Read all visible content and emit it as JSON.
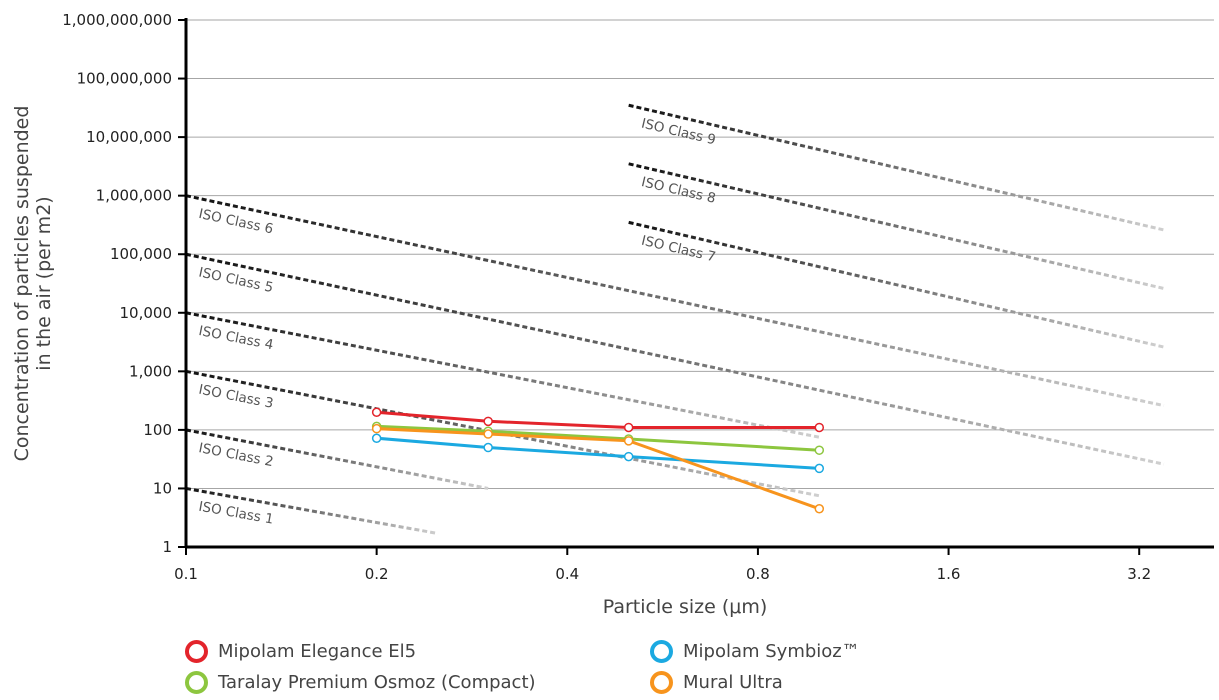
{
  "chart_data": {
    "type": "line",
    "title": "",
    "xlabel": "Particle size (μm)",
    "ylabel_lines": [
      "Concentration of particles suspended",
      "in the air (per m2)"
    ],
    "x_scale": "log2",
    "y_scale": "log10",
    "xlim": [
      0.1,
      4.2
    ],
    "ylim": [
      1,
      1000000000
    ],
    "x_ticks": [
      0.1,
      0.2,
      0.4,
      0.8,
      1.6,
      3.2
    ],
    "x_tick_labels": [
      "0.1",
      "0.2",
      "0.4",
      "0.8",
      "1.6",
      "3.2"
    ],
    "y_ticks": [
      1,
      10,
      100,
      1000,
      10000,
      100000,
      1000000,
      10000000,
      100000000,
      1000000000
    ],
    "y_tick_labels": [
      "1",
      "10",
      "100",
      "1,000",
      "10,000",
      "100,000",
      "1,000,000",
      "10,000,000",
      "100,000,000",
      "1,000,000,000"
    ],
    "grid": "horizontal",
    "series": [
      {
        "name": "Mipolam Elegance El5",
        "color": "#e3242b",
        "x": [
          0.2,
          0.3,
          0.5,
          1.0
        ],
        "y": [
          200,
          140,
          110,
          110
        ]
      },
      {
        "name": "Taralay Premium Osmoz (Compact)",
        "color": "#8dc63f",
        "x": [
          0.2,
          0.3,
          0.5,
          1.0
        ],
        "y": [
          115,
          95,
          70,
          45
        ]
      },
      {
        "name": "Mipolam Symbioz™",
        "color": "#1ba9e1",
        "x": [
          0.2,
          0.3,
          0.5,
          1.0
        ],
        "y": [
          72,
          50,
          35,
          22
        ]
      },
      {
        "name": "Mural Ultra",
        "color": "#f7941d",
        "x": [
          0.2,
          0.3,
          0.5,
          1.0
        ],
        "y": [
          105,
          85,
          65,
          4.5
        ]
      }
    ],
    "iso_classes": [
      {
        "label": "ISO Class 1",
        "x": [
          0.1,
          0.25
        ],
        "y": [
          10,
          1.7
        ]
      },
      {
        "label": "ISO Class 2",
        "x": [
          0.1,
          0.3
        ],
        "y": [
          100,
          10
        ]
      },
      {
        "label": "ISO Class 3",
        "x": [
          0.1,
          1.0
        ],
        "y": [
          1000,
          7.5
        ]
      },
      {
        "label": "ISO Class 4",
        "x": [
          0.1,
          1.0
        ],
        "y": [
          10000,
          75
        ]
      },
      {
        "label": "ISO Class 5",
        "x": [
          0.1,
          3.5
        ],
        "y": [
          100000,
          26
        ]
      },
      {
        "label": "ISO Class 6",
        "x": [
          0.1,
          3.5
        ],
        "y": [
          1000000,
          260
        ]
      },
      {
        "label": "ISO Class 7",
        "x": [
          0.5,
          3.5
        ],
        "y": [
          350000,
          2600
        ]
      },
      {
        "label": "ISO Class 8",
        "x": [
          0.5,
          3.5
        ],
        "y": [
          3500000,
          26000
        ]
      },
      {
        "label": "ISO Class 9",
        "x": [
          0.5,
          3.5
        ],
        "y": [
          35000000,
          260000
        ]
      }
    ]
  },
  "legend": {
    "items": [
      {
        "label": "Mipolam Elegance El5",
        "color": "#e3242b"
      },
      {
        "label": "Mipolam Symbioz™",
        "color": "#1ba9e1"
      },
      {
        "label": "Taralay Premium Osmoz (Compact)",
        "color": "#8dc63f"
      },
      {
        "label": "Mural Ultra",
        "color": "#f7941d"
      }
    ]
  }
}
